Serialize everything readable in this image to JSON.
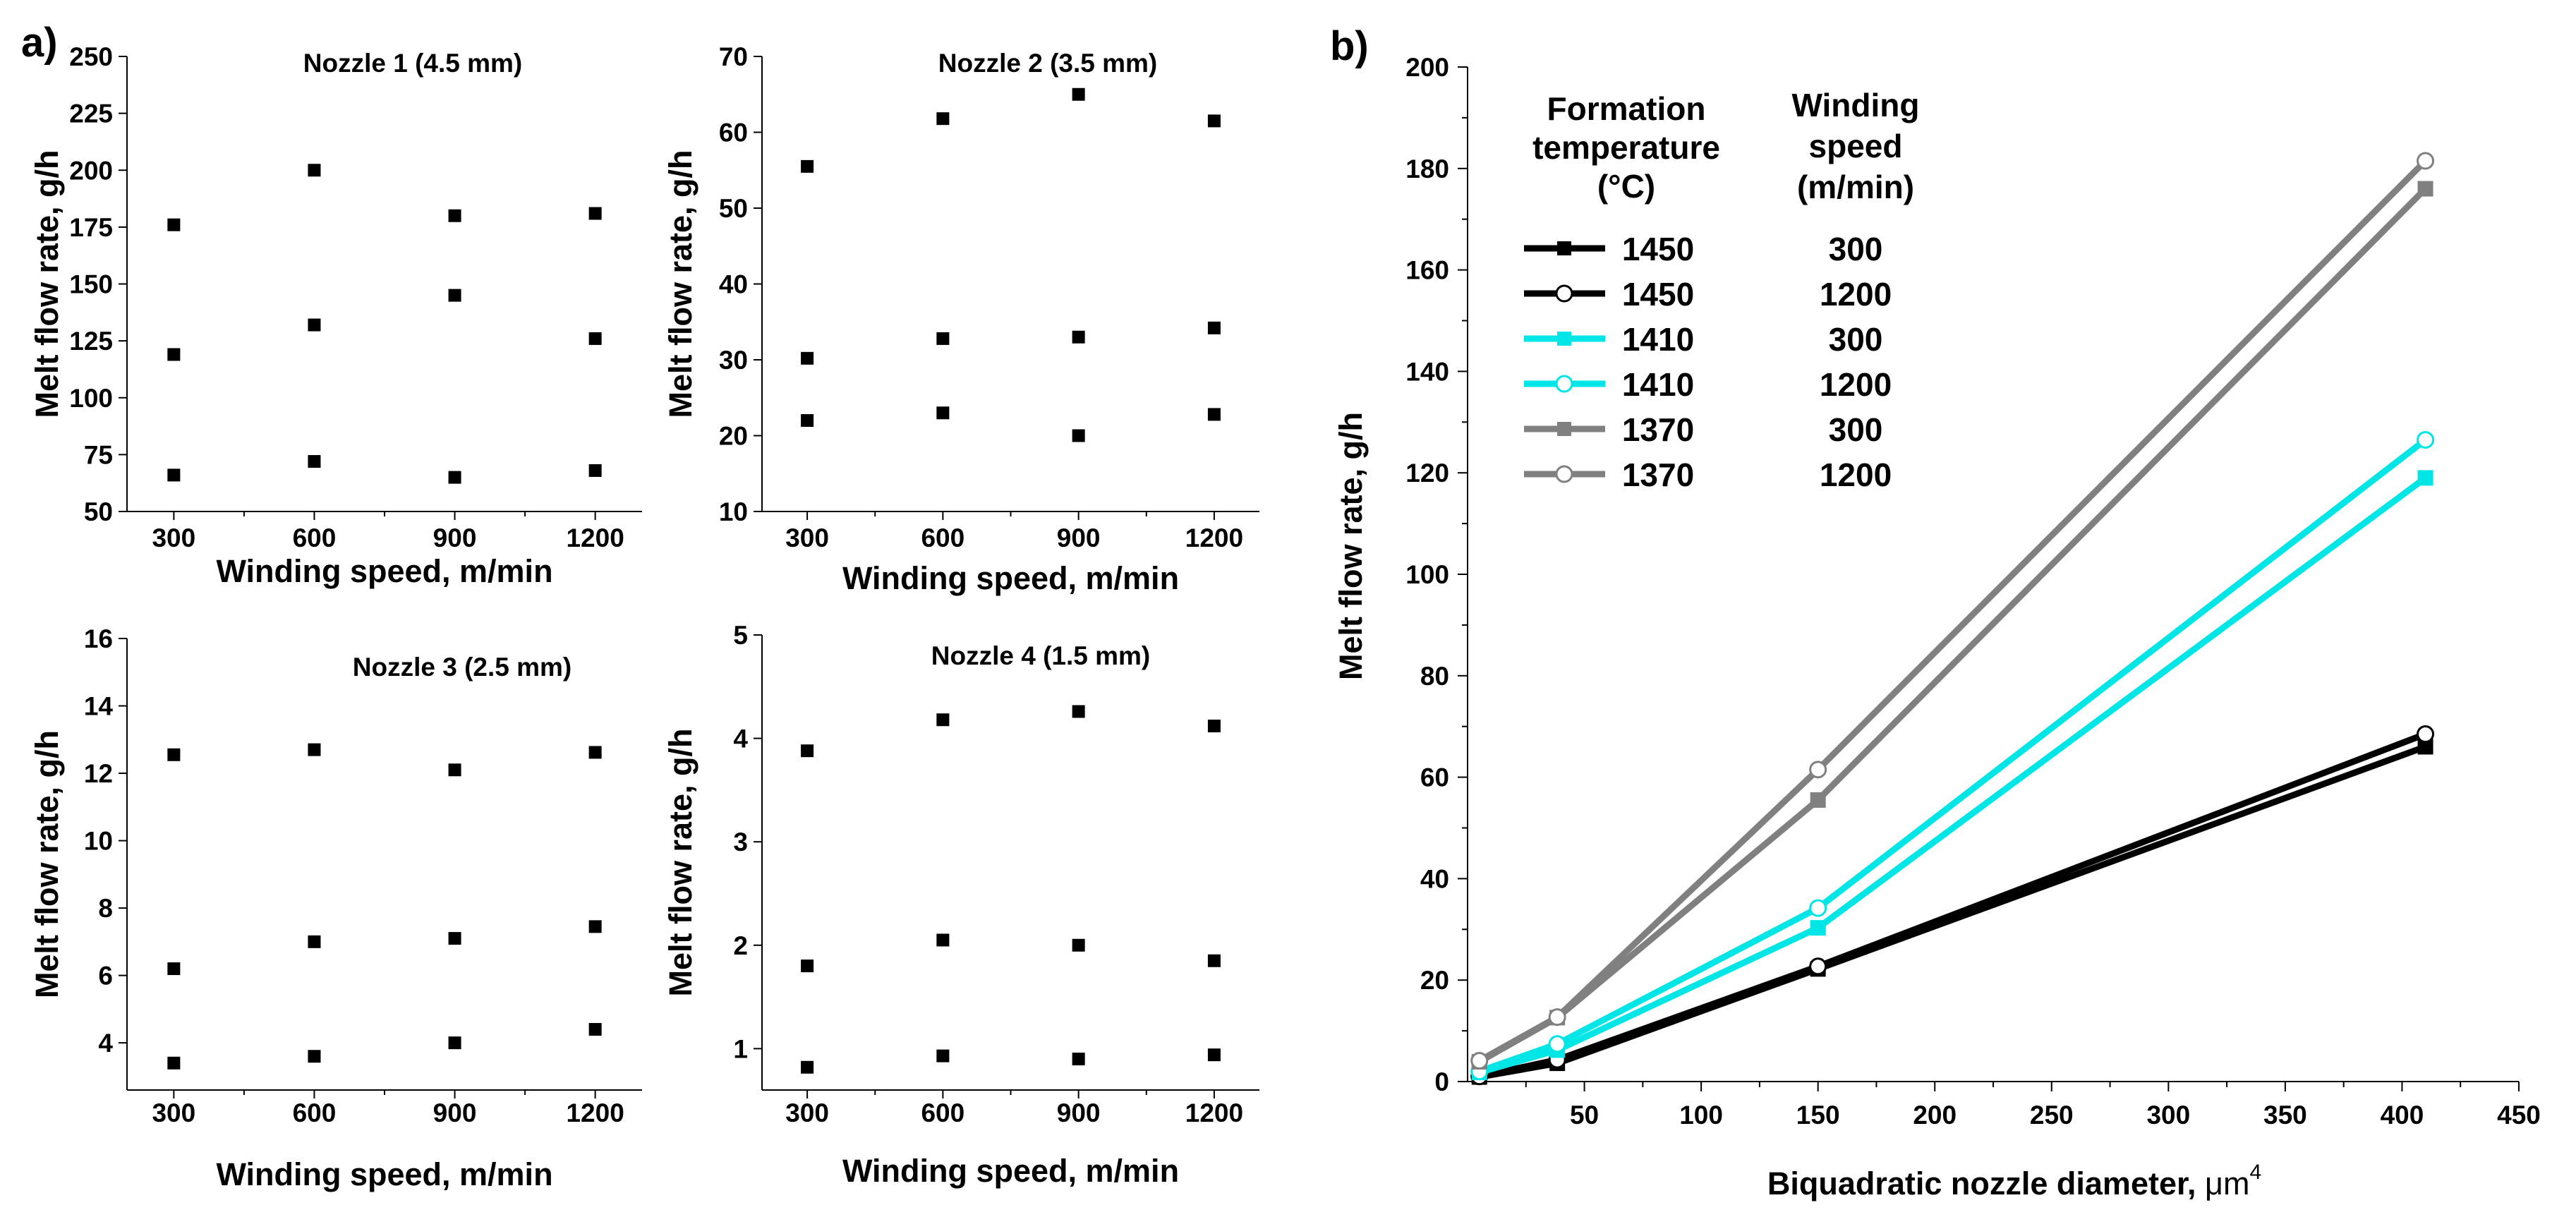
{
  "panel_a_label": "a)",
  "panel_b_label": "b)",
  "chart_data": [
    {
      "type": "scatter",
      "id": "nozzle1",
      "title": "Nozzle 1 (4.5 mm)",
      "xlabel": "Winding speed, m/min",
      "ylabel": "Melt flow rate, g/h",
      "x_ticks": [
        "300",
        "600",
        "900",
        "1200"
      ],
      "y_ticks": [
        "50",
        "75",
        "100",
        "125",
        "150",
        "175",
        "200",
        "225",
        "250"
      ],
      "xlim": [
        200,
        1300
      ],
      "ylim": [
        50,
        250
      ],
      "points": [
        {
          "x": 300,
          "y": 66
        },
        {
          "x": 300,
          "y": 119
        },
        {
          "x": 300,
          "y": 176
        },
        {
          "x": 600,
          "y": 72
        },
        {
          "x": 600,
          "y": 132
        },
        {
          "x": 600,
          "y": 200
        },
        {
          "x": 900,
          "y": 65
        },
        {
          "x": 900,
          "y": 145
        },
        {
          "x": 900,
          "y": 180
        },
        {
          "x": 1200,
          "y": 68
        },
        {
          "x": 1200,
          "y": 126
        },
        {
          "x": 1200,
          "y": 181
        }
      ]
    },
    {
      "type": "scatter",
      "id": "nozzle2",
      "title": "Nozzle 2 (3.5 mm)",
      "xlabel": "Winding speed, m/min",
      "ylabel": "Melt flow rate, g/h",
      "x_ticks": [
        "300",
        "600",
        "900",
        "1200"
      ],
      "y_ticks": [
        "10",
        "20",
        "30",
        "40",
        "50",
        "60",
        "70"
      ],
      "xlim": [
        200,
        1300
      ],
      "ylim": [
        10,
        70
      ],
      "points": [
        {
          "x": 300,
          "y": 22
        },
        {
          "x": 300,
          "y": 30.2
        },
        {
          "x": 300,
          "y": 55.5
        },
        {
          "x": 600,
          "y": 23
        },
        {
          "x": 600,
          "y": 32.8
        },
        {
          "x": 600,
          "y": 61.8
        },
        {
          "x": 900,
          "y": 20
        },
        {
          "x": 900,
          "y": 33
        },
        {
          "x": 900,
          "y": 65
        },
        {
          "x": 1200,
          "y": 22.8
        },
        {
          "x": 1200,
          "y": 34.2
        },
        {
          "x": 1200,
          "y": 61.5
        }
      ]
    },
    {
      "type": "scatter",
      "id": "nozzle3",
      "title": "Nozzle 3 (2.5 mm)",
      "xlabel": "Winding speed, m/min",
      "ylabel": "Melt flow rate, g/h",
      "x_ticks": [
        "300",
        "600",
        "900",
        "1200"
      ],
      "y_ticks": [
        "4",
        "6",
        "8",
        "10",
        "12",
        "14",
        "16"
      ],
      "xlim": [
        200,
        1300
      ],
      "ylim": [
        2.6,
        16
      ],
      "points": [
        {
          "x": 300,
          "y": 3.4
        },
        {
          "x": 300,
          "y": 6.2
        },
        {
          "x": 300,
          "y": 12.55
        },
        {
          "x": 600,
          "y": 3.6
        },
        {
          "x": 600,
          "y": 7.0
        },
        {
          "x": 600,
          "y": 12.7
        },
        {
          "x": 900,
          "y": 4.0
        },
        {
          "x": 900,
          "y": 7.1
        },
        {
          "x": 900,
          "y": 12.1
        },
        {
          "x": 1200,
          "y": 4.4
        },
        {
          "x": 1200,
          "y": 7.45
        },
        {
          "x": 1200,
          "y": 12.62
        }
      ]
    },
    {
      "type": "scatter",
      "id": "nozzle4",
      "title": "Nozzle 4 (1.5 mm)",
      "xlabel": "Winding speed, m/min",
      "ylabel": "Melt flow rate, g/h",
      "x_ticks": [
        "300",
        "600",
        "900",
        "1200"
      ],
      "y_ticks": [
        "1",
        "2",
        "3",
        "4",
        "5"
      ],
      "xlim": [
        200,
        1300
      ],
      "ylim": [
        0.6,
        5
      ],
      "points": [
        {
          "x": 300,
          "y": 0.82
        },
        {
          "x": 300,
          "y": 1.8
        },
        {
          "x": 300,
          "y": 3.88
        },
        {
          "x": 600,
          "y": 0.93
        },
        {
          "x": 600,
          "y": 2.05
        },
        {
          "x": 600,
          "y": 4.18
        },
        {
          "x": 900,
          "y": 0.9
        },
        {
          "x": 900,
          "y": 2.0
        },
        {
          "x": 900,
          "y": 4.26
        },
        {
          "x": 1200,
          "y": 0.94
        },
        {
          "x": 1200,
          "y": 1.85
        },
        {
          "x": 1200,
          "y": 4.12
        }
      ]
    },
    {
      "type": "line",
      "id": "panel_b",
      "xlabel_main": "Biquadratic nozzle diameter, ",
      "xlabel_unit": "μm",
      "xlabel_sup": "4",
      "ylabel": "Melt flow rate, g/h",
      "x_ticks": [
        "50",
        "100",
        "150",
        "200",
        "250",
        "300",
        "350",
        "400",
        "450"
      ],
      "y_ticks": [
        "0",
        "20",
        "40",
        "60",
        "80",
        "100",
        "120",
        "140",
        "160",
        "180",
        "200"
      ],
      "xlim": [
        0,
        450
      ],
      "ylim": [
        0,
        200
      ],
      "legend": {
        "col1_head": [
          "Formation",
          "temperature",
          "(°C)"
        ],
        "col2_head": [
          "Winding",
          "speed",
          "(m/min)"
        ]
      },
      "series": [
        {
          "temperature": "1450",
          "speed": "300",
          "color": "#000000",
          "marker": "square",
          "x": [
            5.06,
            38.4,
            150,
            410
          ],
          "y": [
            0.9,
            3.6,
            22.2,
            66.0
          ]
        },
        {
          "temperature": "1450",
          "speed": "1200",
          "color": "#000000",
          "marker": "circle",
          "x": [
            5.06,
            38.4,
            150,
            410
          ],
          "y": [
            1.0,
            4.3,
            22.7,
            68.5
          ]
        },
        {
          "temperature": "1410",
          "speed": "300",
          "color": "#00e6e6",
          "marker": "square",
          "x": [
            5.06,
            38.4,
            150,
            410
          ],
          "y": [
            1.8,
            6.2,
            30.3,
            119.0
          ]
        },
        {
          "temperature": "1410",
          "speed": "1200",
          "color": "#00e6e6",
          "marker": "circle",
          "x": [
            5.06,
            38.4,
            150,
            410
          ],
          "y": [
            2.0,
            7.4,
            34.2,
            126.5
          ]
        },
        {
          "temperature": "1370",
          "speed": "300",
          "color": "#808080",
          "marker": "square",
          "x": [
            5.06,
            38.4,
            150,
            410
          ],
          "y": [
            3.9,
            12.6,
            55.5,
            176.0
          ]
        },
        {
          "temperature": "1370",
          "speed": "1200",
          "color": "#808080",
          "marker": "circle",
          "x": [
            5.06,
            38.4,
            150,
            410
          ],
          "y": [
            4.1,
            12.7,
            61.5,
            181.5
          ]
        }
      ]
    }
  ]
}
